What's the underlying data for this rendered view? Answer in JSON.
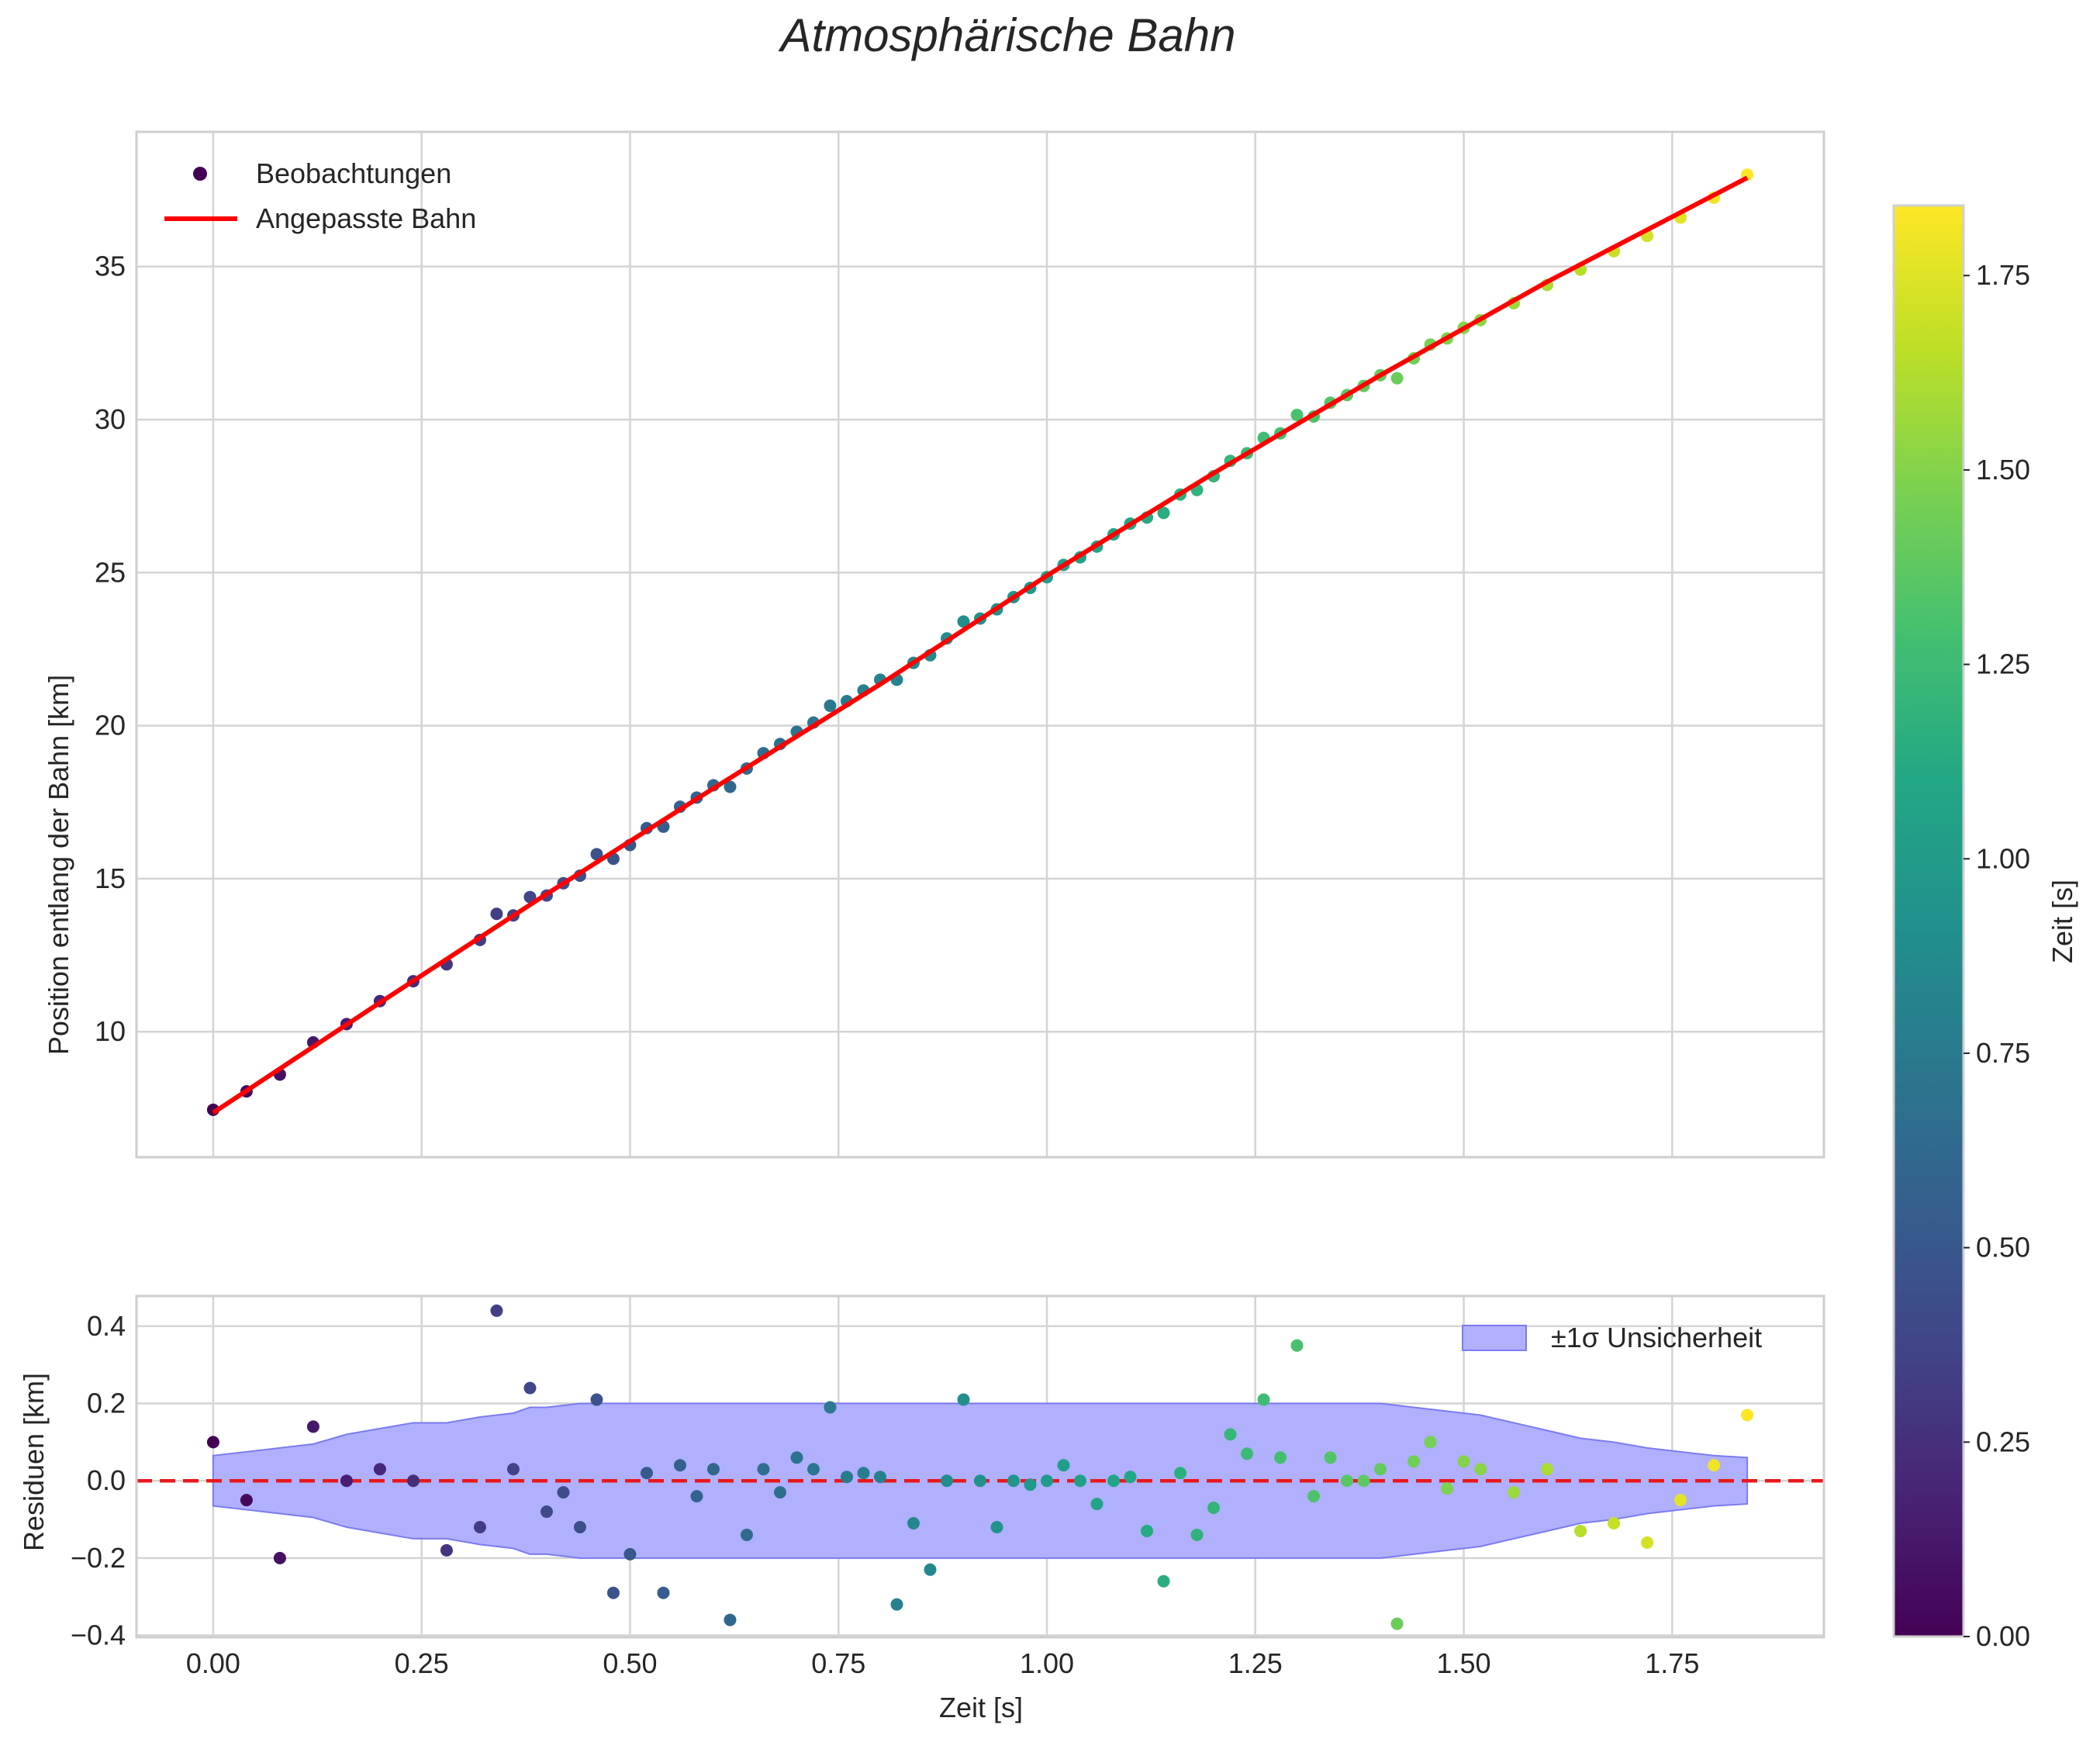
{
  "chart_data": {
    "title": "Atmosphärische Bahn",
    "colors": {
      "fit_line": "#ff0000",
      "zero_line": "#e8181b",
      "band_fill": "#b0b0ff",
      "band_edge": "#7b7bef",
      "grid": "#d4d4d4",
      "frame": "#cfcfcf"
    },
    "colormap": "viridis",
    "top": {
      "type": "scatter",
      "ylabel": "Position entlang der Bahn [km]",
      "xlim": [
        -0.092,
        1.932
      ],
      "ylim": [
        5.9,
        39.4
      ],
      "xticks": [
        0.0,
        0.25,
        0.5,
        0.75,
        1.0,
        1.25,
        1.5,
        1.75
      ],
      "yticks": [
        10,
        15,
        20,
        25,
        30,
        35
      ],
      "yticklabels": [
        "10",
        "15",
        "20",
        "25",
        "30",
        "35"
      ],
      "legend": {
        "position": "upper-left",
        "scatter_label": "Beobachtungen",
        "line_label": "Angepasste Bahn"
      },
      "fit_line": {
        "name": "Angepasste Bahn",
        "x": [
          0.0,
          0.2,
          0.4,
          0.6,
          0.8,
          1.0,
          1.2,
          1.4,
          1.6,
          1.84
        ],
        "y": [
          7.35,
          10.95,
          14.5,
          17.95,
          21.35,
          24.9,
          28.25,
          31.45,
          34.5,
          37.9
        ]
      }
    },
    "bottom": {
      "type": "scatter",
      "ylabel": "Residuen [km]",
      "xlabel": "Zeit [s]",
      "xlim": [
        -0.092,
        1.932
      ],
      "ylim": [
        -0.405,
        0.478
      ],
      "xticks": [
        0.0,
        0.25,
        0.5,
        0.75,
        1.0,
        1.25,
        1.5,
        1.75
      ],
      "xticklabels": [
        "0.00",
        "0.25",
        "0.50",
        "0.75",
        "1.00",
        "1.25",
        "1.50",
        "1.75"
      ],
      "yticks": [
        -0.4,
        -0.2,
        0.0,
        0.2,
        0.4
      ],
      "yticklabels": [
        "−0.4",
        "−0.2",
        "0.0",
        "0.2",
        "0.4"
      ],
      "legend": {
        "position": "upper-right",
        "band_label": "±1σ Unsicherheit"
      },
      "band": {
        "x": [
          0.0,
          0.04,
          0.08,
          0.12,
          0.16,
          0.2,
          0.24,
          0.28,
          0.32,
          0.34,
          0.36,
          0.38,
          0.4,
          0.44,
          0.48,
          0.52,
          0.56,
          0.6,
          0.64,
          0.68,
          0.72,
          0.76,
          0.8,
          0.84,
          0.88,
          0.92,
          0.96,
          1.0,
          1.04,
          1.08,
          1.12,
          1.16,
          1.2,
          1.24,
          1.28,
          1.32,
          1.36,
          1.4,
          1.44,
          1.48,
          1.52,
          1.56,
          1.6,
          1.64,
          1.68,
          1.72,
          1.76,
          1.8,
          1.84
        ],
        "half_width": [
          0.065,
          0.075,
          0.085,
          0.095,
          0.12,
          0.135,
          0.15,
          0.15,
          0.165,
          0.17,
          0.175,
          0.19,
          0.19,
          0.2,
          0.2,
          0.2,
          0.2,
          0.2,
          0.2,
          0.2,
          0.2,
          0.2,
          0.2,
          0.2,
          0.2,
          0.2,
          0.2,
          0.2,
          0.2,
          0.2,
          0.2,
          0.2,
          0.2,
          0.2,
          0.2,
          0.2,
          0.2,
          0.2,
          0.19,
          0.18,
          0.17,
          0.15,
          0.13,
          0.11,
          0.1,
          0.085,
          0.075,
          0.065,
          0.06
        ]
      }
    },
    "colorbar": {
      "label": "Zeit [s]",
      "range": [
        0.0,
        1.84
      ],
      "ticks": [
        0.0,
        0.25,
        0.5,
        0.75,
        1.0,
        1.25,
        1.5,
        1.75
      ],
      "ticklabels": [
        "0.00",
        "0.25",
        "0.50",
        "0.75",
        "1.00",
        "1.25",
        "1.50",
        "1.75"
      ]
    },
    "observations": {
      "name": "Beobachtungen",
      "t": [
        0.0,
        0.04,
        0.08,
        0.12,
        0.16,
        0.2,
        0.24,
        0.28,
        0.32,
        0.34,
        0.36,
        0.38,
        0.4,
        0.42,
        0.44,
        0.46,
        0.48,
        0.5,
        0.52,
        0.54,
        0.56,
        0.58,
        0.6,
        0.62,
        0.64,
        0.66,
        0.68,
        0.7,
        0.72,
        0.74,
        0.76,
        0.78,
        0.8,
        0.82,
        0.84,
        0.86,
        0.88,
        0.9,
        0.92,
        0.94,
        0.96,
        0.98,
        1.0,
        1.02,
        1.04,
        1.06,
        1.08,
        1.1,
        1.12,
        1.14,
        1.16,
        1.18,
        1.2,
        1.22,
        1.24,
        1.26,
        1.28,
        1.3,
        1.32,
        1.34,
        1.36,
        1.38,
        1.4,
        1.42,
        1.44,
        1.46,
        1.48,
        1.5,
        1.52,
        1.56,
        1.6,
        1.64,
        1.68,
        1.72,
        1.76,
        1.8,
        1.84
      ],
      "position": [
        7.45,
        8.05,
        8.6,
        9.65,
        10.25,
        11.0,
        11.65,
        12.2,
        13.0,
        13.85,
        13.8,
        14.4,
        14.45,
        14.85,
        15.1,
        15.8,
        15.65,
        16.1,
        16.65,
        16.7,
        17.35,
        17.65,
        18.05,
        18.0,
        18.6,
        19.1,
        19.4,
        19.8,
        20.1,
        20.65,
        20.8,
        21.15,
        21.5,
        21.5,
        22.05,
        22.3,
        22.85,
        23.4,
        23.5,
        23.8,
        24.2,
        24.5,
        24.85,
        25.25,
        25.5,
        25.85,
        26.25,
        26.6,
        26.8,
        26.95,
        27.55,
        27.7,
        28.15,
        28.65,
        28.9,
        29.4,
        29.55,
        30.15,
        30.1,
        30.55,
        30.8,
        31.1,
        31.45,
        31.35,
        32.0,
        32.45,
        32.65,
        33.0,
        33.25,
        33.8,
        34.4,
        34.9,
        35.5,
        36.0,
        36.6,
        37.25,
        38.0
      ],
      "residual": [
        0.1,
        -0.05,
        -0.2,
        0.14,
        0.0,
        0.03,
        0.0,
        -0.18,
        -0.12,
        0.44,
        0.03,
        0.24,
        -0.08,
        -0.03,
        -0.12,
        0.21,
        -0.29,
        -0.19,
        0.02,
        -0.29,
        0.04,
        -0.04,
        0.03,
        -0.36,
        -0.14,
        0.03,
        -0.03,
        0.06,
        0.03,
        0.19,
        0.01,
        0.02,
        0.01,
        -0.32,
        -0.11,
        -0.23,
        0.0,
        0.21,
        0.0,
        -0.12,
        0.0,
        -0.01,
        0.0,
        0.04,
        0.0,
        -0.06,
        0.0,
        0.01,
        -0.13,
        -0.26,
        0.02,
        -0.14,
        -0.07,
        0.12,
        0.07,
        0.21,
        0.06,
        0.35,
        -0.04,
        0.06,
        0.0,
        0.0,
        0.03,
        -0.37,
        0.05,
        0.1,
        -0.02,
        0.05,
        0.03,
        -0.03,
        0.03,
        -0.13,
        -0.11,
        -0.16,
        -0.05,
        0.04,
        0.17
      ]
    }
  }
}
